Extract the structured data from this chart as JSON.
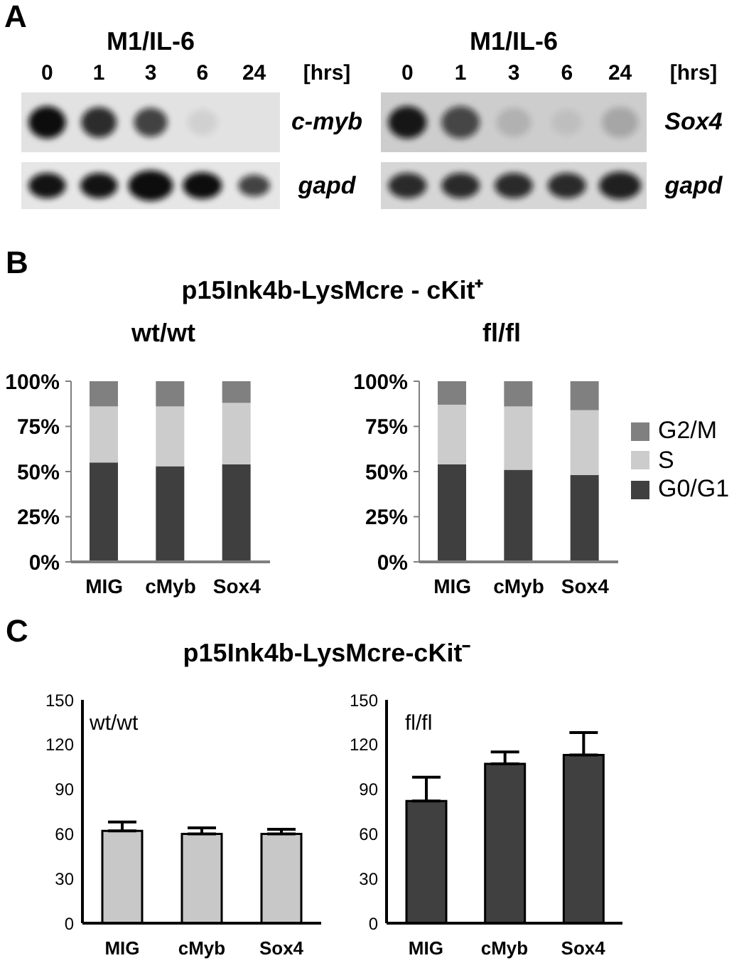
{
  "chart_data": [
    {
      "type": "other",
      "title": "M1/IL-6",
      "categories": [
        "0",
        "1",
        "3",
        "6",
        "24"
      ],
      "xlabel": "[hrs]",
      "y2_categories": [
        "c-myb",
        "gapd"
      ],
      "annotations": [
        "A"
      ]
    },
    {
      "type": "other",
      "title": "M1/IL-6",
      "categories": [
        "0",
        "1",
        "3",
        "6",
        "24"
      ],
      "xlabel": "[hrs]",
      "y2_categories": [
        "Sox4",
        "gapd"
      ]
    },
    {
      "type": "bar",
      "title": "p15Ink4b-LysMcre - cKit⁺",
      "subtitle": "wt/wt",
      "annotations": [
        "B"
      ],
      "categories": [
        "MIG",
        "cMyb",
        "Sox4"
      ],
      "stacked": true,
      "series": [
        {
          "color": "#3f3f3f",
          "values": [
            55,
            53,
            54
          ]
        },
        {
          "color": "#cccccc",
          "values": [
            31,
            33,
            34
          ]
        },
        {
          "color": "#808080",
          "values": [
            14,
            14,
            12
          ]
        }
      ],
      "ylim": [
        0,
        100
      ],
      "yticks": [
        {
          "value": 0,
          "label": "0%"
        },
        {
          "value": 25,
          "label": "25%"
        },
        {
          "value": 50,
          "label": "50%"
        },
        {
          "value": 75,
          "label": "75%"
        },
        {
          "value": 100,
          "label": "100%"
        }
      ]
    },
    {
      "type": "bar",
      "subtitle": "fl/fl",
      "categories": [
        "MIG",
        "cMyb",
        "Sox4"
      ],
      "stacked": true,
      "series": [
        {
          "name": "G0/G1",
          "color": "#3f3f3f",
          "values": [
            54,
            51,
            48
          ]
        },
        {
          "name": "S",
          "color": "#cccccc",
          "values": [
            33,
            35,
            36
          ]
        },
        {
          "name": "G2/M",
          "color": "#808080",
          "values": [
            13,
            14,
            16
          ]
        }
      ],
      "ylim": [
        0,
        100
      ],
      "yticks": [
        {
          "value": 0,
          "label": "0%"
        },
        {
          "value": 25,
          "label": "25%"
        },
        {
          "value": 50,
          "label": "50%"
        },
        {
          "value": 75,
          "label": "75%"
        },
        {
          "value": 100,
          "label": "100%"
        }
      ],
      "legend": "right"
    },
    {
      "type": "bar",
      "title": "p15Ink4b-LysMcre-cKit⁻",
      "subtitle": "wt/wt",
      "annotations": [
        "C"
      ],
      "categories": [
        "MIG",
        "cMyb",
        "Sox4"
      ],
      "values": [
        62,
        60,
        60
      ],
      "errors": [
        [
          62,
          68
        ],
        [
          60,
          64
        ],
        [
          60,
          63
        ]
      ],
      "color": "#c8c8c8",
      "ylim": [
        0,
        150
      ],
      "yticks": [
        0,
        30,
        60,
        90,
        120,
        150
      ]
    },
    {
      "type": "bar",
      "subtitle": "fl/fl",
      "categories": [
        "MIG",
        "cMyb",
        "Sox4"
      ],
      "values": [
        82,
        107,
        113
      ],
      "errors": [
        [
          82,
          98
        ],
        [
          107,
          115
        ],
        [
          113,
          128
        ]
      ],
      "color": "#404040",
      "ylim": [
        0,
        150
      ],
      "yticks": [
        0,
        30,
        60,
        90,
        120,
        150
      ]
    }
  ]
}
